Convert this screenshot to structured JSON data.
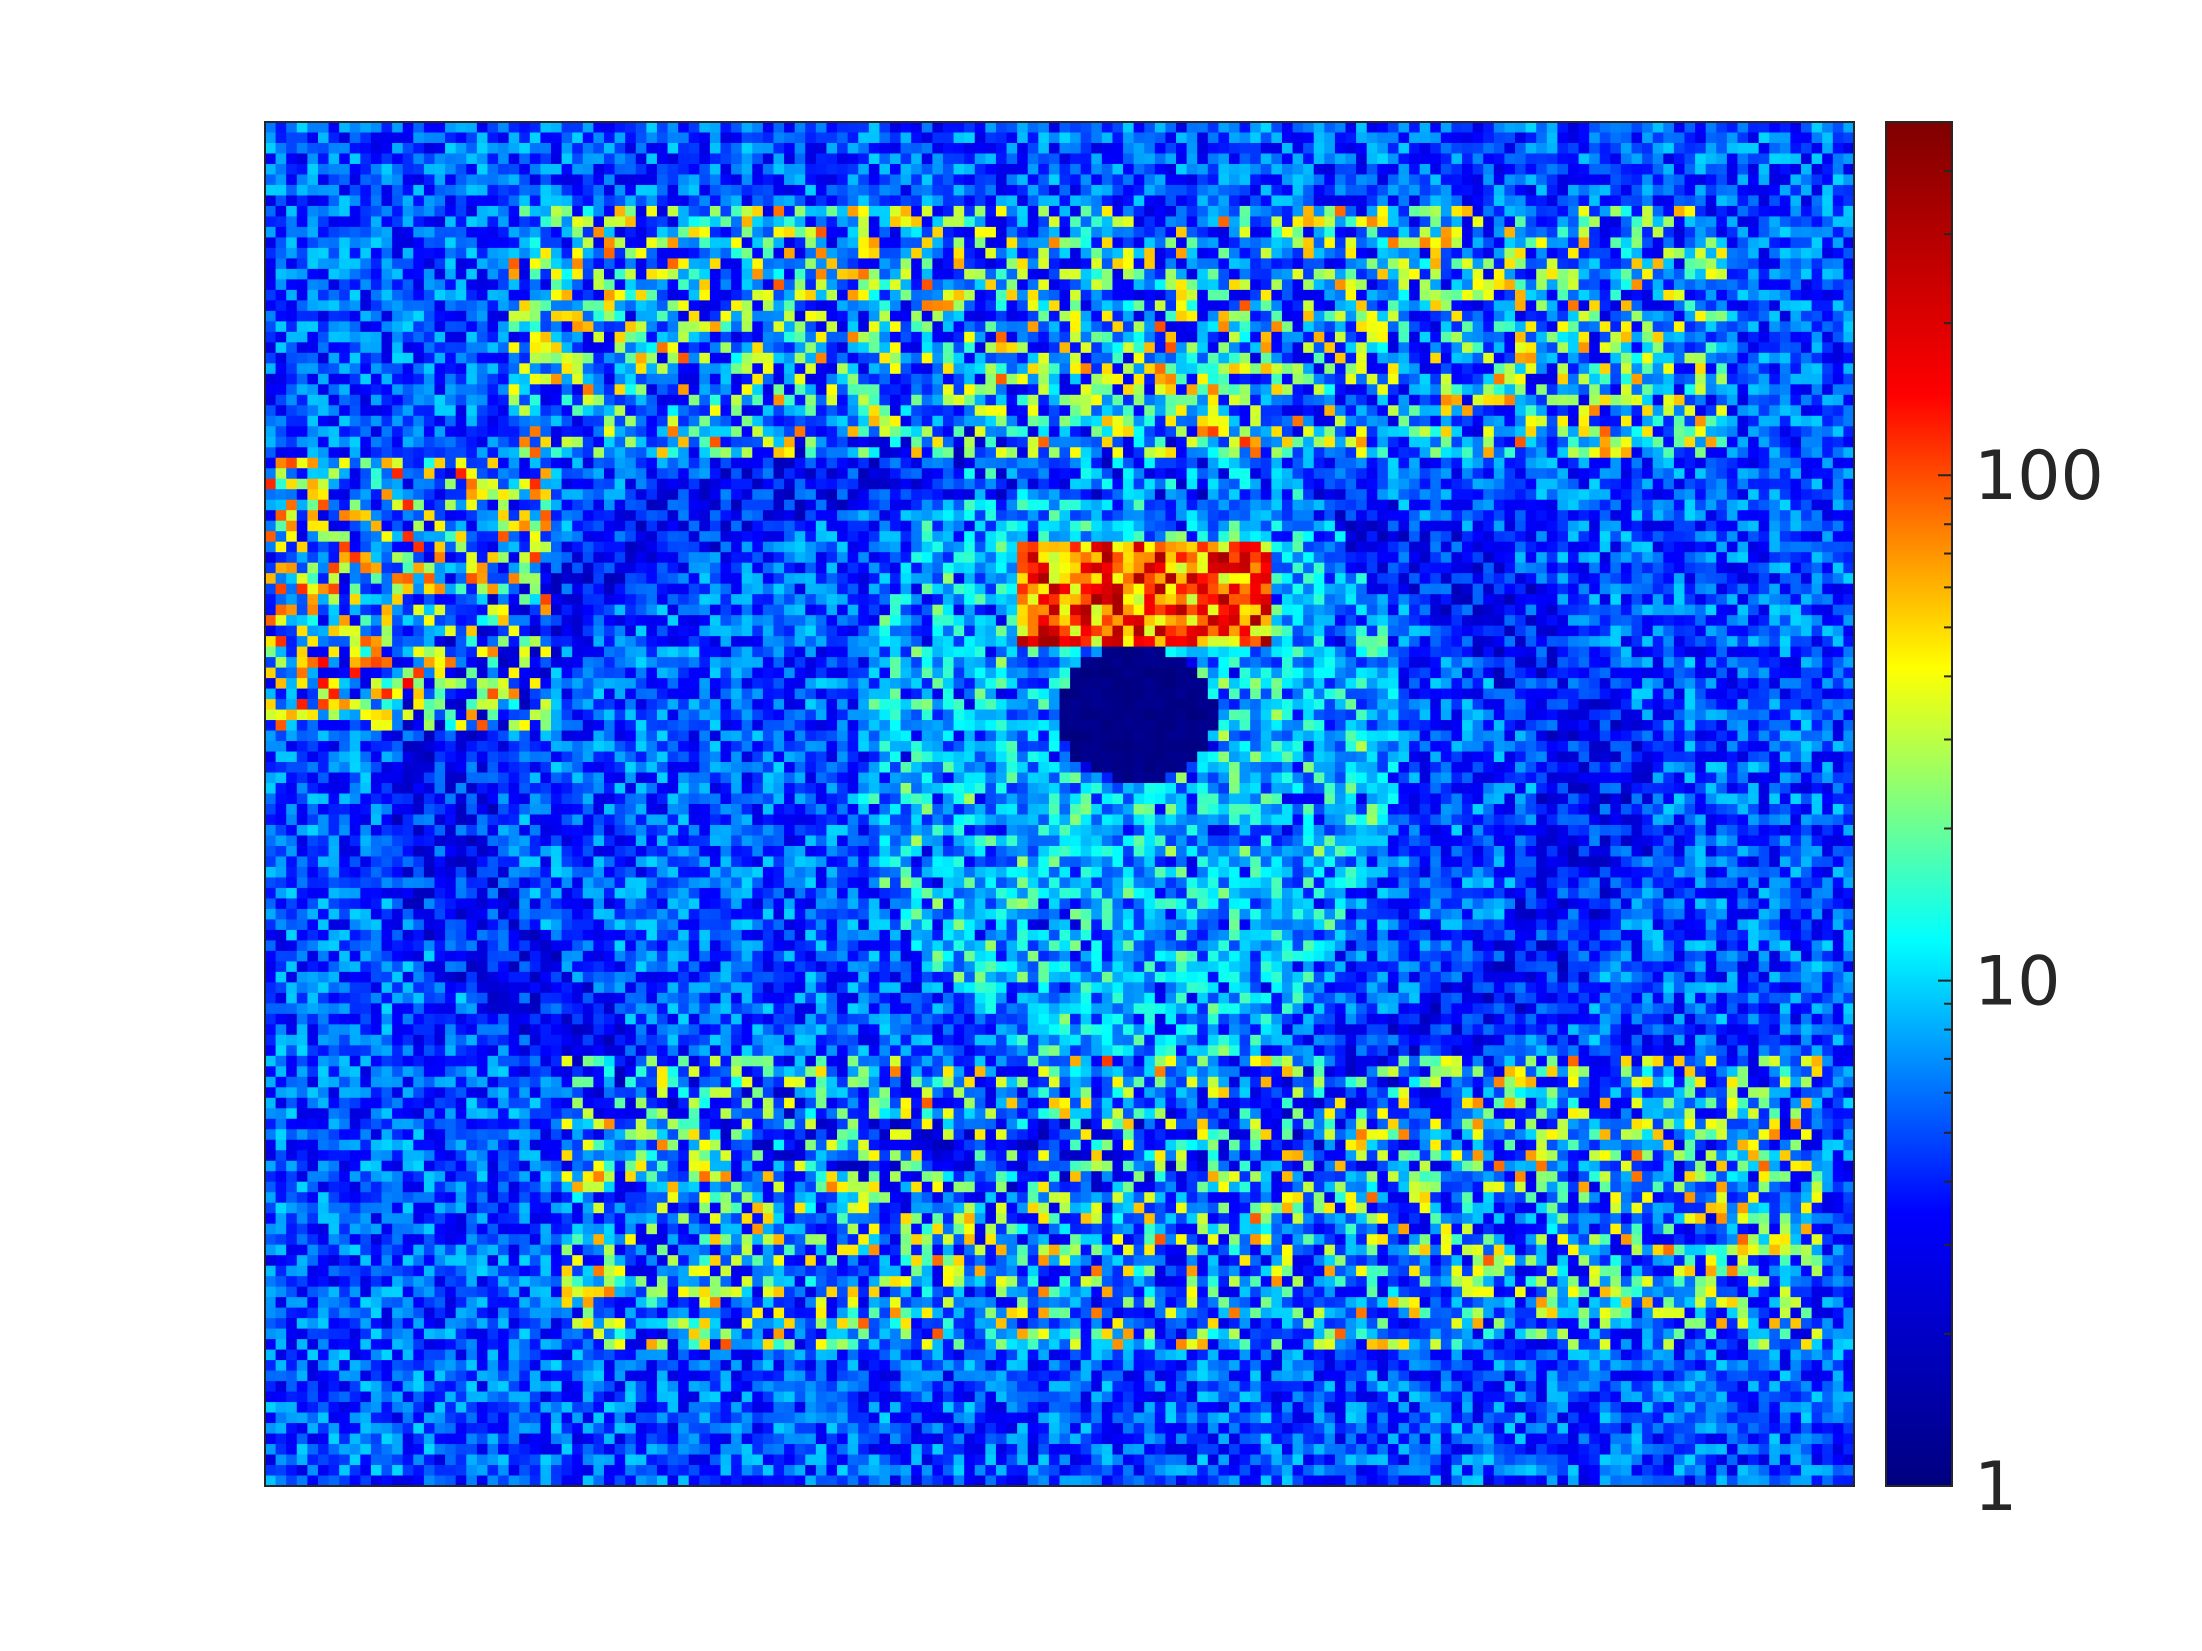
{
  "chart_data": {
    "type": "heatmap",
    "title": "",
    "xlabel": "",
    "ylabel": "",
    "axes_ticks_visible": false,
    "colormap": "jet",
    "colormap_stops": [
      "#00007f",
      "#0000ff",
      "#00ffff",
      "#ffff00",
      "#ff0000",
      "#7f0000"
    ],
    "colorbar": {
      "placement": "right",
      "scale": "log",
      "range": [
        1,
        500
      ],
      "tick_values": [
        1,
        10,
        100
      ],
      "tick_labels": [
        "1",
        "10",
        "100"
      ]
    },
    "image_description_values": {
      "background_typical": 5,
      "lash_strands_typical": 40,
      "iris_highlight_max": 300,
      "pupil_min": 1
    },
    "grid": false,
    "legend": "none"
  }
}
